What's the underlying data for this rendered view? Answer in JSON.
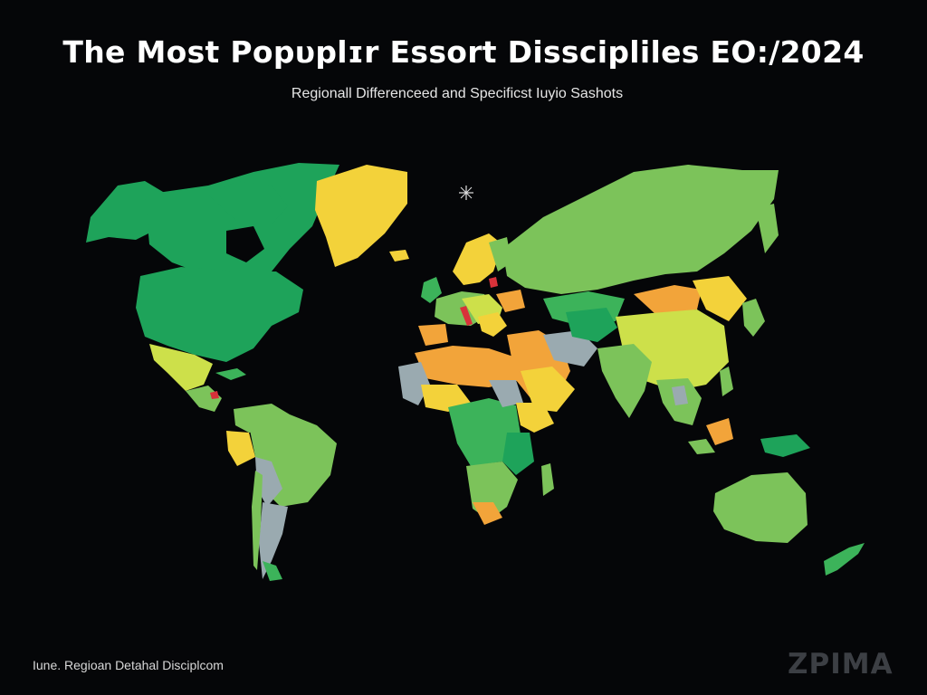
{
  "title": "The Most Popυplɪr Essort Disscipliles EO:/2024",
  "subtitle": "Regionall Differenceed and Specificst Iuyio Sashots",
  "footer_label": "Iune. Regioan Detahal Disciplcom",
  "watermark": "ZPIMA",
  "colors": {
    "background": "#050608",
    "dark_green": "#1ea35a",
    "green": "#3cb35a",
    "light_green": "#7cc35a",
    "yellow_green": "#cde04a",
    "yellow": "#f3d23a",
    "orange": "#f2a43a",
    "gray_blue": "#9aaab0",
    "red": "#d8323a",
    "pink": "#e05a8a"
  },
  "icons": {
    "compass": "compass-star-icon"
  }
}
